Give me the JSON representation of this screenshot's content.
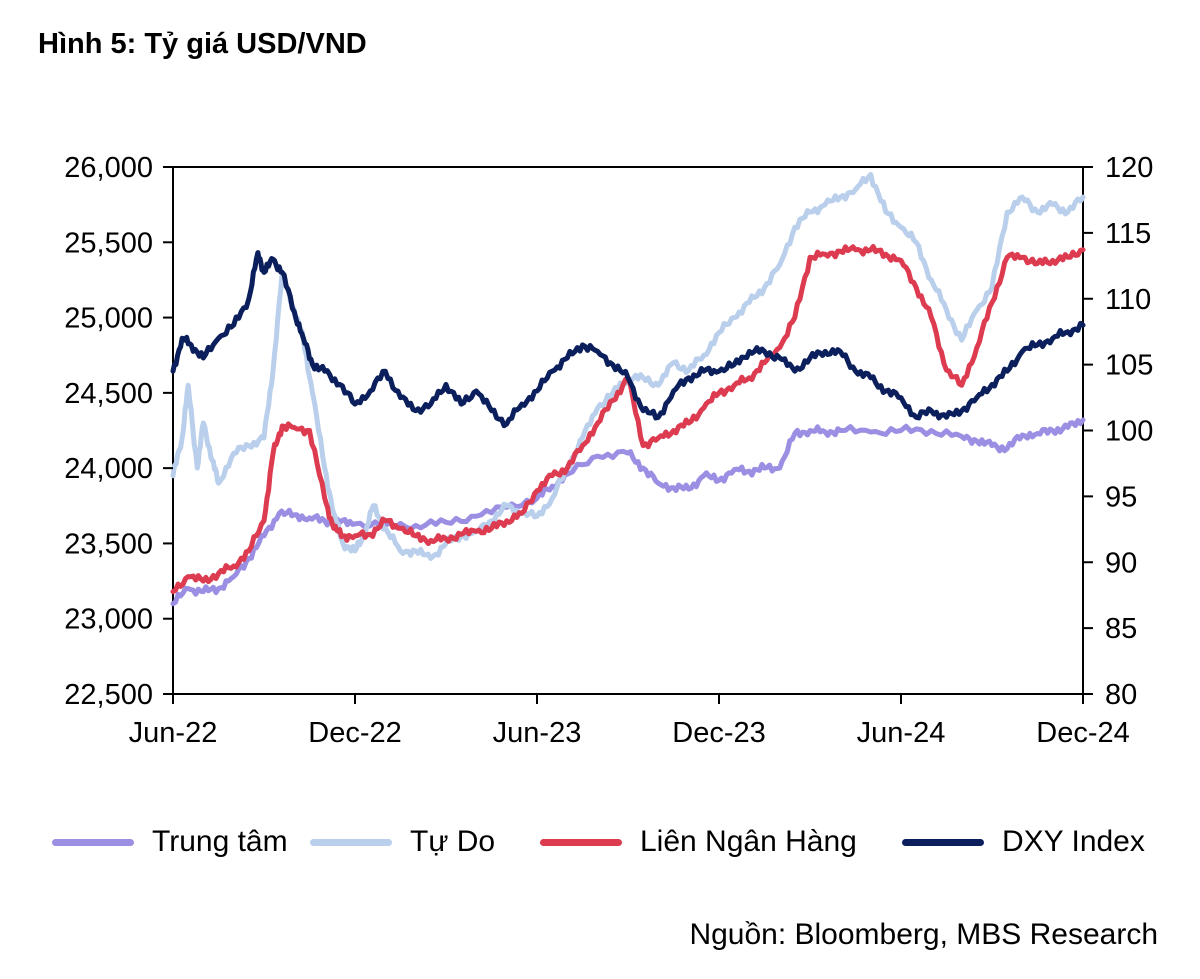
{
  "title": "Hình 5: Tỷ giá USD/VND",
  "source": "Nguồn: Bloomberg, MBS Research",
  "chart_data": {
    "type": "line",
    "title": "Hình 5: Tỷ giá USD/VND",
    "x_ticks": [
      "Jun-22",
      "Dec-22",
      "Jun-23",
      "Dec-23",
      "Jun-24",
      "Dec-24"
    ],
    "x_range_months": [
      0,
      30
    ],
    "y_left": {
      "ylim": [
        22500,
        26000
      ],
      "ticks": [
        22500,
        23000,
        23500,
        24000,
        24500,
        25000,
        25500,
        26000
      ],
      "tick_labels": [
        "22,500",
        "23,000",
        "23,500",
        "24,000",
        "24,500",
        "25,000",
        "25,500",
        "26,000"
      ]
    },
    "y_right": {
      "ylim": [
        80,
        120
      ],
      "ticks": [
        80,
        85,
        90,
        95,
        100,
        105,
        110,
        115,
        120
      ],
      "tick_labels": [
        "80",
        "85",
        "90",
        "95",
        "100",
        "105",
        "110",
        "115",
        "120"
      ]
    },
    "legend_position": "bottom",
    "series": [
      {
        "name": "Trung tâm",
        "axis": "left",
        "color": "#9b8fe3",
        "x": [
          0,
          0.5,
          1,
          1.5,
          2,
          2.5,
          3,
          3.5,
          4,
          4.5,
          5,
          5.5,
          6,
          7,
          8,
          9,
          10,
          11,
          12,
          12.5,
          13,
          14,
          15,
          15.5,
          16,
          16.5,
          17,
          17.5,
          18,
          18.5,
          19,
          19.5,
          20,
          20.5,
          21,
          21.5,
          22,
          23,
          24,
          25,
          26,
          26.5,
          27,
          27.5,
          28,
          28.5,
          29,
          29.5,
          30
        ],
        "values": [
          23100,
          23200,
          23180,
          23200,
          23280,
          23400,
          23550,
          23700,
          23690,
          23670,
          23650,
          23640,
          23630,
          23620,
          23620,
          23640,
          23680,
          23740,
          23800,
          23880,
          23960,
          24080,
          24100,
          24000,
          23900,
          23870,
          23860,
          23950,
          23920,
          23990,
          23980,
          24000,
          24000,
          24230,
          24250,
          24240,
          24250,
          24240,
          24250,
          24250,
          24210,
          24180,
          24150,
          24130,
          24220,
          24230,
          24250,
          24270,
          24320
        ]
      },
      {
        "name": "Tự Do",
        "axis": "left",
        "color": "#b9cfeb",
        "x": [
          0,
          0.3,
          0.5,
          0.8,
          1,
          1.3,
          1.5,
          2,
          2.5,
          3,
          3.3,
          3.6,
          4,
          4.3,
          4.6,
          5,
          5.3,
          5.6,
          6,
          6.3,
          6.6,
          7,
          7.5,
          8,
          8.5,
          9,
          9.5,
          10,
          10.5,
          11,
          11.5,
          12,
          12.5,
          13,
          13.5,
          14,
          14.5,
          15,
          15.5,
          16,
          16.5,
          17,
          17.5,
          18,
          18.5,
          19,
          19.5,
          20,
          20.5,
          21,
          21.5,
          22,
          22.5,
          23,
          23.5,
          24,
          24.5,
          25,
          25.5,
          26,
          26.5,
          27,
          27.5,
          28,
          28.5,
          29,
          29.5,
          30
        ],
        "values": [
          23950,
          24200,
          24550,
          24000,
          24300,
          24050,
          23900,
          24100,
          24150,
          24200,
          24650,
          25300,
          25050,
          24850,
          24500,
          24000,
          23700,
          23500,
          23450,
          23550,
          23750,
          23600,
          23450,
          23450,
          23400,
          23500,
          23550,
          23580,
          23650,
          23750,
          23700,
          23680,
          23800,
          24000,
          24200,
          24400,
          24500,
          24600,
          24600,
          24550,
          24700,
          24650,
          24750,
          24900,
          25000,
          25100,
          25200,
          25350,
          25600,
          25700,
          25750,
          25800,
          25850,
          25950,
          25700,
          25600,
          25500,
          25250,
          25050,
          24850,
          25050,
          25200,
          25700,
          25800,
          25700,
          25750,
          25700,
          25800
        ]
      },
      {
        "name": "Liên Ngân Hàng",
        "axis": "left",
        "color": "#dc3b50",
        "x": [
          0,
          0.5,
          1,
          1.5,
          2,
          2.5,
          3,
          3.3,
          3.6,
          4,
          4.5,
          5,
          5.3,
          5.6,
          6,
          6.5,
          7,
          7.5,
          8,
          8.5,
          9,
          9.5,
          10,
          10.5,
          11,
          11.5,
          12,
          12.5,
          13,
          13.5,
          14,
          14.5,
          15,
          15.5,
          16,
          16.5,
          17,
          17.5,
          18,
          18.5,
          19,
          19.5,
          20,
          20.5,
          21,
          21.5,
          22,
          22.5,
          23,
          23.5,
          24,
          24.5,
          25,
          25.5,
          26,
          26.5,
          27,
          27.5,
          28,
          28.5,
          29,
          29.5,
          30
        ],
        "values": [
          23180,
          23280,
          23250,
          23300,
          23350,
          23450,
          23650,
          24100,
          24280,
          24270,
          24250,
          23800,
          23600,
          23550,
          23550,
          23560,
          23650,
          23600,
          23550,
          23520,
          23530,
          23560,
          23580,
          23600,
          23650,
          23700,
          23850,
          23950,
          24000,
          24150,
          24300,
          24450,
          24600,
          24150,
          24200,
          24250,
          24300,
          24400,
          24500,
          24550,
          24600,
          24700,
          24800,
          25000,
          25400,
          25420,
          25440,
          25450,
          25450,
          25420,
          25380,
          25200,
          25000,
          24650,
          24550,
          24800,
          25100,
          25400,
          25400,
          25360,
          25380,
          25400,
          25450
        ]
      },
      {
        "name": "DXY Index",
        "axis": "right",
        "color": "#0b1f5c",
        "x": [
          0,
          0.3,
          0.6,
          1,
          1.5,
          2,
          2.5,
          2.8,
          3,
          3.3,
          3.6,
          4,
          4.3,
          4.6,
          5,
          5.5,
          6,
          6.5,
          7,
          7.5,
          8,
          8.5,
          9,
          9.5,
          10,
          10.5,
          11,
          11.5,
          12,
          12.5,
          13,
          13.5,
          14,
          14.5,
          15,
          15.5,
          16,
          16.5,
          17,
          17.5,
          18,
          18.5,
          19,
          19.5,
          20,
          20.5,
          21,
          21.5,
          22,
          22.5,
          23,
          23.5,
          24,
          24.5,
          25,
          25.5,
          26,
          26.5,
          27,
          27.5,
          28,
          28.5,
          29,
          29.5,
          30
        ],
        "values": [
          104.5,
          107,
          106.5,
          105.5,
          107,
          108,
          110,
          113.5,
          112,
          113,
          112,
          109,
          107,
          105,
          104.5,
          103.5,
          102,
          103,
          104.5,
          102.5,
          101.5,
          102,
          103.5,
          102,
          103,
          101.5,
          100.5,
          102,
          103,
          104.5,
          105.5,
          106.5,
          106,
          105,
          104,
          101.5,
          101,
          103,
          104,
          104.5,
          104.5,
          105,
          106,
          106,
          105.5,
          104.5,
          105.5,
          106,
          106,
          104.5,
          104,
          103,
          102.5,
          101,
          101.5,
          101,
          101.5,
          102.5,
          103.5,
          104.5,
          106,
          106.5,
          107,
          107.5,
          108
        ]
      }
    ]
  },
  "legend": [
    {
      "label": "Trung tâm",
      "color": "#9b8fe3"
    },
    {
      "label": "Tự Do",
      "color": "#b9cfeb"
    },
    {
      "label": "Liên Ngân Hàng",
      "color": "#dc3b50"
    },
    {
      "label": "DXY Index",
      "color": "#0b1f5c"
    }
  ]
}
